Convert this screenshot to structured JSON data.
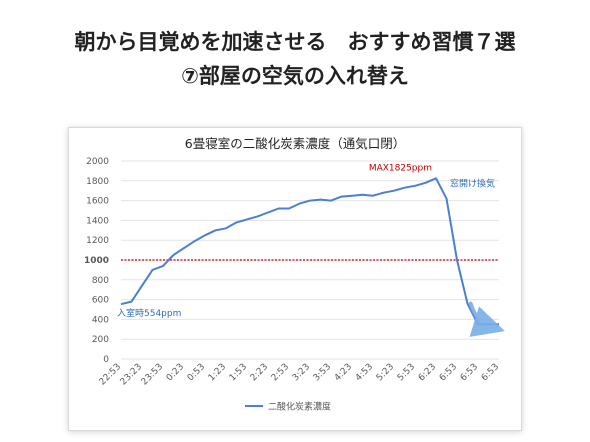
{
  "headline": {
    "line1": "朝から目覚めを加速させる　おすすめ習慣７選",
    "line2": "⑦部屋の空気の入れ替え"
  },
  "chart_data": {
    "type": "line",
    "title": "6畳寝室の二酸化炭素濃度（通気口閉）",
    "xlabel": "",
    "ylabel": "",
    "ylim": [
      0,
      2000
    ],
    "yticks": [
      0,
      200,
      400,
      600,
      800,
      1000,
      1200,
      1400,
      1600,
      1800,
      2000
    ],
    "x_tick_labels": [
      "22:53",
      "23:23",
      "23:53",
      "0:23",
      "0:53",
      "1:23",
      "1:53",
      "2:23",
      "2:53",
      "3:23",
      "3:53",
      "4:23",
      "4:53",
      "5:23",
      "5:53",
      "6:23",
      "6:53",
      "6:53",
      "6:53"
    ],
    "legend": "bottom",
    "grid": true,
    "series": [
      {
        "name": "二酸化炭素濃度",
        "color": "#4a7fd4",
        "x": [
          0,
          0.5,
          1,
          1.5,
          2,
          2.5,
          3,
          3.5,
          4,
          4.5,
          5,
          5.5,
          6,
          6.5,
          7,
          7.5,
          8,
          8.5,
          9,
          9.5,
          10,
          10.5,
          11,
          11.5,
          12,
          12.5,
          13,
          13.5,
          14,
          14.5,
          15,
          15.5,
          16,
          16.5,
          17,
          17.5,
          18
        ],
        "values": [
          554,
          580,
          740,
          900,
          940,
          1050,
          1120,
          1190,
          1250,
          1300,
          1320,
          1380,
          1410,
          1440,
          1480,
          1520,
          1520,
          1570,
          1600,
          1610,
          1600,
          1640,
          1650,
          1660,
          1650,
          1680,
          1700,
          1730,
          1750,
          1780,
          1825,
          1620,
          1000,
          560,
          350,
          350,
          350
        ]
      }
    ],
    "reference_line": {
      "value": 1000,
      "label": "1000",
      "color": "#c00000"
    },
    "annotations": [
      {
        "text": "MAX1825ppm",
        "color": "#c00000"
      },
      {
        "text": "窓開け換気",
        "color": "#2f6cc0"
      },
      {
        "text": "入室時554ppm",
        "color": "#2f6cc0"
      }
    ],
    "arrow_color": "#7aaee6"
  }
}
